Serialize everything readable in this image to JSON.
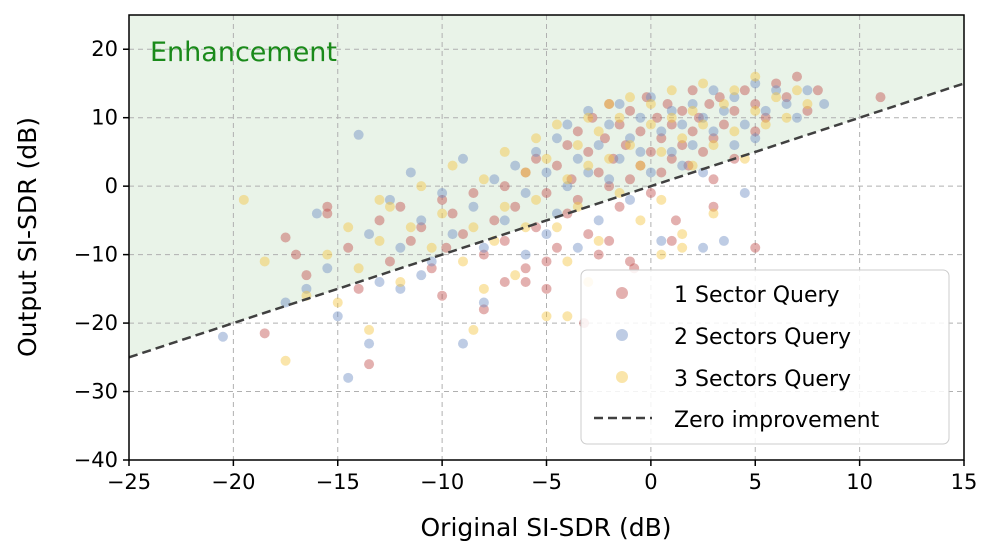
{
  "chart_data": {
    "type": "scatter",
    "title": "",
    "xlabel": "Original SI-SDR (dB)",
    "ylabel": "Output SI-SDR (dB)",
    "xlim": [
      -25,
      15
    ],
    "ylim": [
      -40,
      25
    ],
    "xticks": [
      -25,
      -20,
      -15,
      -10,
      -5,
      0,
      5,
      10,
      15
    ],
    "yticks": [
      -40,
      -30,
      -20,
      -10,
      0,
      10,
      20
    ],
    "xtick_labels": [
      "−25",
      "−20",
      "−15",
      "−10",
      "−5",
      "0",
      "5",
      "10",
      "15"
    ],
    "ytick_labels": [
      "−40",
      "−30",
      "−20",
      "−10",
      "0",
      "10",
      "20"
    ],
    "grid": true,
    "legend_position": "bottom-right",
    "annotation": "Enhancement",
    "colors": {
      "enhancement_region": "#e9f3e8",
      "annotation": "#1a8a1a",
      "zero_line": "#404040"
    },
    "reference_line": {
      "name": "Zero improvement",
      "slope": 1,
      "intercept": 0,
      "style": "dashed"
    },
    "series": [
      {
        "name": "1 Sector Query",
        "color": "#c0504d",
        "points": [
          [
            -18.5,
            -21.5
          ],
          [
            -17.5,
            -7.5
          ],
          [
            -16.5,
            -13
          ],
          [
            -15.5,
            -4
          ],
          [
            -14.5,
            -9
          ],
          [
            -14,
            -15
          ],
          [
            -13.5,
            -26
          ],
          [
            -13,
            -5
          ],
          [
            -12.5,
            -11
          ],
          [
            -12,
            -3
          ],
          [
            -11.5,
            -8
          ],
          [
            -11,
            -6
          ],
          [
            -10.5,
            -12
          ],
          [
            -10,
            -2
          ],
          [
            -9.8,
            -9
          ],
          [
            -9.5,
            -4
          ],
          [
            -9,
            -7
          ],
          [
            -8.5,
            -1
          ],
          [
            -8,
            -18
          ],
          [
            -8,
            -10
          ],
          [
            -7.5,
            -5
          ],
          [
            -7,
            0
          ],
          [
            -7,
            -8
          ],
          [
            -6.5,
            -3
          ],
          [
            -6,
            2
          ],
          [
            -6,
            -12
          ],
          [
            -5.5,
            -6
          ],
          [
            -5.5,
            4
          ],
          [
            -5,
            -1
          ],
          [
            -5,
            -15
          ],
          [
            -4.5,
            3
          ],
          [
            -4.5,
            -9
          ],
          [
            -4,
            6
          ],
          [
            -4,
            -4
          ],
          [
            -3.8,
            1
          ],
          [
            -3.5,
            8
          ],
          [
            -3.5,
            -2
          ],
          [
            -3.2,
            -20
          ],
          [
            -3,
            5
          ],
          [
            -3,
            -7
          ],
          [
            -2.8,
            10
          ],
          [
            -2.5,
            2
          ],
          [
            -2.5,
            -10
          ],
          [
            -2.2,
            7
          ],
          [
            -2,
            0
          ],
          [
            -2,
            12
          ],
          [
            -1.8,
            4
          ],
          [
            -1.5,
            9
          ],
          [
            -1.5,
            -3
          ],
          [
            -1.2,
            6
          ],
          [
            -1,
            11
          ],
          [
            -1,
            1
          ],
          [
            -0.8,
            -12
          ],
          [
            -0.5,
            8
          ],
          [
            -0.5,
            3
          ],
          [
            -0.2,
            13
          ],
          [
            0,
            5
          ],
          [
            0,
            -1
          ],
          [
            0.3,
            10
          ],
          [
            0.5,
            7
          ],
          [
            0.5,
            2
          ],
          [
            0.8,
            12
          ],
          [
            1,
            4
          ],
          [
            1,
            9
          ],
          [
            1.2,
            -5
          ],
          [
            1.5,
            11
          ],
          [
            1.5,
            6
          ],
          [
            1.8,
            3
          ],
          [
            2,
            14
          ],
          [
            2,
            8
          ],
          [
            2.3,
            10
          ],
          [
            2.5,
            5
          ],
          [
            2.8,
            12
          ],
          [
            3,
            7
          ],
          [
            3,
            1
          ],
          [
            3.3,
            13
          ],
          [
            3.5,
            9
          ],
          [
            4,
            11
          ],
          [
            4,
            4
          ],
          [
            4.5,
            14
          ],
          [
            5,
            8
          ],
          [
            5,
            12
          ],
          [
            5.5,
            10
          ],
          [
            6,
            15
          ],
          [
            6.5,
            13
          ],
          [
            7,
            16
          ],
          [
            7.5,
            11
          ],
          [
            8,
            14
          ],
          [
            11,
            13
          ],
          [
            -2,
            -8
          ],
          [
            -6,
            -14
          ],
          [
            -10,
            -16
          ],
          [
            -15.5,
            -3
          ],
          [
            -17,
            -10
          ],
          [
            -1,
            -11
          ],
          [
            1,
            -8
          ],
          [
            3,
            -3
          ],
          [
            5,
            -9
          ],
          [
            -5,
            -11
          ],
          [
            -7,
            -14
          ]
        ]
      },
      {
        "name": "2 Sectors Query",
        "color": "#6f8fc4",
        "points": [
          [
            -20.5,
            -22
          ],
          [
            -17.5,
            -17
          ],
          [
            -16.5,
            -15
          ],
          [
            -16,
            -4
          ],
          [
            -15,
            -19
          ],
          [
            -14.5,
            -28
          ],
          [
            -14,
            7.5
          ],
          [
            -13.5,
            -7
          ],
          [
            -13.5,
            -23
          ],
          [
            -13,
            -14
          ],
          [
            -12.5,
            -2
          ],
          [
            -12,
            -9
          ],
          [
            -11.5,
            2
          ],
          [
            -11,
            -5
          ],
          [
            -10.5,
            -11
          ],
          [
            -10,
            -1
          ],
          [
            -9.5,
            -7
          ],
          [
            -9,
            4
          ],
          [
            -8.5,
            -3
          ],
          [
            -8,
            -17
          ],
          [
            -8,
            -9
          ],
          [
            -7.5,
            1
          ],
          [
            -7,
            -5
          ],
          [
            -6.5,
            3
          ],
          [
            -6,
            -10
          ],
          [
            -6,
            -1
          ],
          [
            -5.5,
            5
          ],
          [
            -5,
            -7
          ],
          [
            -5,
            2
          ],
          [
            -4.5,
            7
          ],
          [
            -4.5,
            -4
          ],
          [
            -4,
            9
          ],
          [
            -4,
            0
          ],
          [
            -3.5,
            4
          ],
          [
            -3.5,
            -9
          ],
          [
            -3,
            11
          ],
          [
            -3,
            2
          ],
          [
            -2.5,
            6
          ],
          [
            -2.5,
            -5
          ],
          [
            -2,
            9
          ],
          [
            -2,
            1
          ],
          [
            -1.5,
            12
          ],
          [
            -1.5,
            4
          ],
          [
            -1,
            7
          ],
          [
            -1,
            -2
          ],
          [
            -0.5,
            10
          ],
          [
            -0.5,
            5
          ],
          [
            0,
            13
          ],
          [
            0,
            2
          ],
          [
            0.5,
            8
          ],
          [
            0.5,
            -8
          ],
          [
            1,
            11
          ],
          [
            1,
            5
          ],
          [
            1.5,
            3
          ],
          [
            1.5,
            9
          ],
          [
            2,
            6
          ],
          [
            2,
            12
          ],
          [
            2.5,
            10
          ],
          [
            2.5,
            2
          ],
          [
            3,
            14
          ],
          [
            3,
            8
          ],
          [
            3.5,
            -8
          ],
          [
            3.5,
            11
          ],
          [
            4,
            6
          ],
          [
            4,
            13
          ],
          [
            4.5,
            9
          ],
          [
            5,
            15
          ],
          [
            5,
            7
          ],
          [
            5.5,
            11
          ],
          [
            6,
            14
          ],
          [
            6.5,
            12
          ],
          [
            7,
            10
          ],
          [
            7.5,
            14
          ],
          [
            8.3,
            12
          ],
          [
            -9,
            -23
          ],
          [
            -11,
            -13
          ],
          [
            -15.5,
            -12
          ],
          [
            -12,
            -15
          ],
          [
            4.5,
            -1
          ],
          [
            2.5,
            -9
          ]
        ]
      },
      {
        "name": "3 Sectors Query",
        "color": "#f5c542",
        "points": [
          [
            -19.5,
            -2
          ],
          [
            -18.5,
            -11
          ],
          [
            -17.5,
            -25.5
          ],
          [
            -16.5,
            -16
          ],
          [
            -15.5,
            -10
          ],
          [
            -15,
            -17
          ],
          [
            -14.5,
            -6
          ],
          [
            -14,
            -12
          ],
          [
            -13.5,
            -21
          ],
          [
            -13,
            -8
          ],
          [
            -12.5,
            -3
          ],
          [
            -12,
            -14
          ],
          [
            -11.5,
            -6
          ],
          [
            -11,
            0
          ],
          [
            -10.5,
            -9
          ],
          [
            -10,
            -4
          ],
          [
            -9.5,
            3
          ],
          [
            -9,
            -11
          ],
          [
            -8.5,
            -6
          ],
          [
            -8.5,
            -21
          ],
          [
            -8,
            1
          ],
          [
            -7.5,
            -8
          ],
          [
            -7,
            5
          ],
          [
            -7,
            -3
          ],
          [
            -6.5,
            -13
          ],
          [
            -6,
            2
          ],
          [
            -6,
            -6
          ],
          [
            -5.5,
            7
          ],
          [
            -5.5,
            -2
          ],
          [
            -5,
            -19
          ],
          [
            -5,
            4
          ],
          [
            -4.5,
            -6
          ],
          [
            -4.5,
            9
          ],
          [
            -4,
            1
          ],
          [
            -4,
            -11
          ],
          [
            -3.5,
            6
          ],
          [
            -3.5,
            -3
          ],
          [
            -3,
            10
          ],
          [
            -3,
            3
          ],
          [
            -2.5,
            -8
          ],
          [
            -2.5,
            8
          ],
          [
            -2,
            12
          ],
          [
            -2,
            4
          ],
          [
            -1.5,
            -1
          ],
          [
            -1.5,
            10
          ],
          [
            -1,
            6
          ],
          [
            -1,
            13
          ],
          [
            -0.5,
            3
          ],
          [
            -0.5,
            -5
          ],
          [
            0,
            9
          ],
          [
            0,
            12
          ],
          [
            0.5,
            5
          ],
          [
            0.5,
            -2
          ],
          [
            1,
            10
          ],
          [
            1,
            14
          ],
          [
            1.5,
            7
          ],
          [
            1.5,
            -7
          ],
          [
            2,
            11
          ],
          [
            2,
            3
          ],
          [
            2.5,
            9
          ],
          [
            2.5,
            15
          ],
          [
            3,
            6
          ],
          [
            3,
            -4
          ],
          [
            3.5,
            12
          ],
          [
            4,
            8
          ],
          [
            4,
            14
          ],
          [
            4.5,
            4
          ],
          [
            5,
            11
          ],
          [
            5,
            16
          ],
          [
            5.5,
            9
          ],
          [
            6,
            13
          ],
          [
            6.5,
            10
          ],
          [
            7,
            14
          ],
          [
            7.5,
            12
          ],
          [
            1.5,
            -9
          ],
          [
            -3,
            -14
          ],
          [
            -8,
            -15
          ],
          [
            -13,
            -2
          ],
          [
            -4,
            -19
          ],
          [
            0.5,
            -10
          ]
        ]
      }
    ]
  }
}
